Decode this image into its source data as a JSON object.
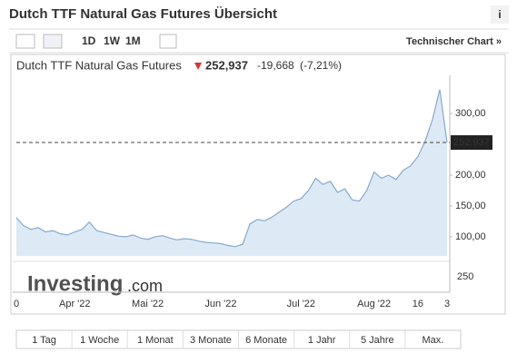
{
  "header": {
    "title": "Dutch TTF Natural Gas Futures Übersicht",
    "info": "i"
  },
  "toolbar": {
    "intervals": [
      "1D",
      "1W",
      "1M"
    ],
    "link": "Technischer Chart »"
  },
  "quote": {
    "name": "Dutch TTF Natural Gas Futures",
    "price": "252,937",
    "change": "-19,668",
    "change_percent": "(-7,21%)"
  },
  "branding": {
    "name": "Investing",
    "suffix": ".com"
  },
  "chart_data": {
    "type": "area",
    "categories": [
      "0",
      null,
      null,
      null,
      null,
      null,
      null,
      null,
      "Apr '22",
      null,
      null,
      null,
      null,
      null,
      null,
      null,
      null,
      null,
      "Mai '22",
      null,
      null,
      null,
      null,
      null,
      null,
      null,
      null,
      null,
      "Jun '22",
      null,
      null,
      null,
      null,
      null,
      null,
      null,
      null,
      null,
      null,
      "Jul '22",
      null,
      null,
      null,
      null,
      null,
      null,
      null,
      null,
      null,
      "Aug '22",
      null,
      null,
      null,
      null,
      null,
      "16",
      null,
      null,
      null,
      "3"
    ],
    "values": [
      131,
      118,
      112,
      115,
      108,
      110,
      105,
      103,
      108,
      112,
      124,
      110,
      107,
      104,
      101,
      100,
      103,
      98,
      96,
      100,
      102,
      98,
      95,
      97,
      96,
      93,
      91,
      90,
      89,
      86,
      84,
      88,
      121,
      128,
      126,
      132,
      140,
      148,
      158,
      162,
      175,
      195,
      185,
      190,
      172,
      178,
      160,
      158,
      175,
      205,
      195,
      200,
      193,
      208,
      215,
      230,
      255,
      290,
      339,
      252.937
    ],
    "color": "#86aacd",
    "fill": "#dde9f5",
    "ylim": [
      69,
      359
    ],
    "yticks": [
      {
        "value": 100,
        "label": "100,00"
      },
      {
        "value": 150,
        "label": "150,00"
      },
      {
        "value": 200,
        "label": "200,00"
      },
      {
        "value": 300,
        "label": "300,00"
      }
    ],
    "last_value_line": true,
    "volume_yticks": [
      250
    ]
  },
  "ranges": [
    "1 Tag",
    "1 Woche",
    "1 Monat",
    "3 Monate",
    "6 Monate",
    "1 Jahr",
    "5 Jahre",
    "Max."
  ]
}
